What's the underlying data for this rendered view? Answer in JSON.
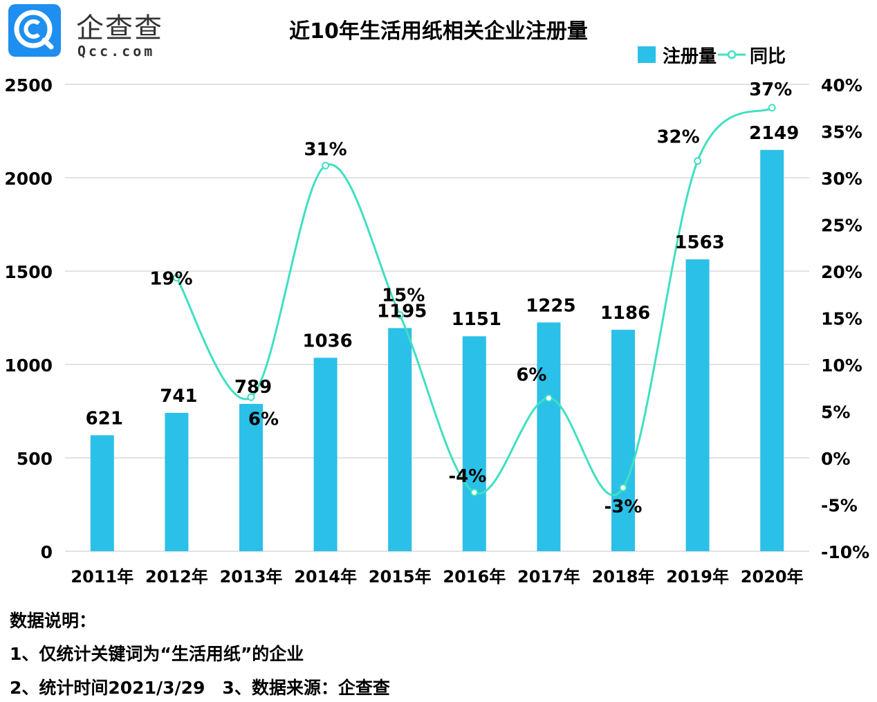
{
  "logo": {
    "name_cn": "企查查",
    "name_en": "Qcc.com",
    "brand_color": "#1e8ff0"
  },
  "chart_data": {
    "type": "bar+line",
    "title": "近10年生活用纸相关企业注册量",
    "categories": [
      "2011年",
      "2012年",
      "2013年",
      "2014年",
      "2015年",
      "2016年",
      "2017年",
      "2018年",
      "2019年",
      "2020年"
    ],
    "series": [
      {
        "name": "注册量",
        "type": "bar",
        "axis": "left",
        "color": "#2bc0e8",
        "values": [
          621,
          741,
          789,
          1036,
          1195,
          1151,
          1225,
          1186,
          1563,
          2149
        ],
        "labels": [
          "621",
          "741",
          "789",
          "1036",
          "1195",
          "1151",
          "1225",
          "1186",
          "1563",
          "2149"
        ]
      },
      {
        "name": "同比",
        "type": "line",
        "axis": "right",
        "color": "#3ee0c0",
        "values": [
          null,
          19.3,
          6.5,
          31.3,
          15.3,
          -3.7,
          6.4,
          -3.2,
          31.8,
          37.5
        ],
        "labels": [
          null,
          "19%",
          "6%",
          "31%",
          "15%",
          "-4%",
          "6%",
          "-3%",
          "32%",
          "37%"
        ]
      }
    ],
    "left_axis": {
      "ylim": [
        0,
        2500
      ],
      "ticks": [
        "0",
        "500",
        "1000",
        "1500",
        "2000",
        "2500"
      ]
    },
    "right_axis": {
      "ylim": [
        -10,
        40
      ],
      "ticks": [
        "-10%",
        "-5%",
        "0%",
        "5%",
        "10%",
        "15%",
        "20%",
        "25%",
        "30%",
        "35%",
        "40%"
      ]
    },
    "grid": true,
    "legend": "top-right",
    "legend_items": [
      "注册量",
      "同比"
    ]
  },
  "notes": {
    "heading": "数据说明：",
    "line1": "1、仅统计关键词为“生活用纸”的企业",
    "line2": "2、统计时间2021/3/29　3、数据来源：企查查"
  }
}
